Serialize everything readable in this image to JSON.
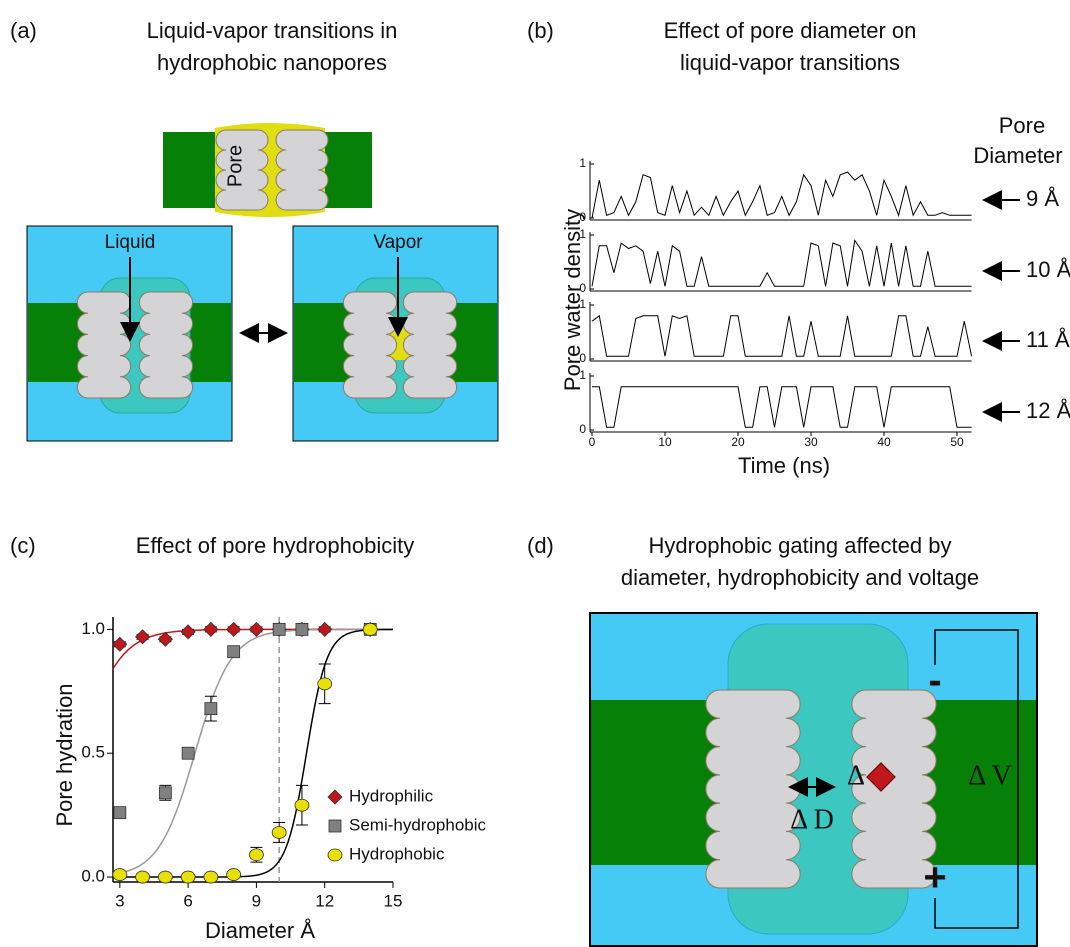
{
  "panel_a": {
    "label": "(a)",
    "title": [
      "Liquid-vapor transitions in",
      "hydrophobic nanopores"
    ],
    "pore": "Pore",
    "liquid": "Liquid",
    "vapor": "Vapor"
  },
  "chart_data": [
    {
      "type": "line",
      "panel_label": "(b)",
      "title": [
        "Effect of pore diameter on",
        "liquid-vapor transitions"
      ],
      "y_label": "Pore water density",
      "x_label": "Time (ns)",
      "legend_title": [
        "Pore",
        "Diameter"
      ],
      "x": [
        0,
        1,
        2,
        3,
        4,
        5,
        6,
        7,
        8,
        9,
        10,
        11,
        12,
        13,
        14,
        15,
        16,
        17,
        18,
        19,
        20,
        21,
        22,
        23,
        24,
        25,
        26,
        27,
        28,
        29,
        30,
        31,
        32,
        33,
        34,
        35,
        36,
        37,
        38,
        39,
        40,
        41,
        42,
        43,
        44,
        45,
        46,
        47,
        48,
        49,
        50,
        51,
        52
      ],
      "xlim": [
        0,
        52
      ],
      "xticks": [
        0,
        10,
        20,
        30,
        40,
        50
      ],
      "ylim": [
        0,
        1
      ],
      "yticks": [
        0,
        1
      ],
      "color": "#000000",
      "series": [
        {
          "name": "9 Å",
          "values": [
            0,
            0.7,
            0.05,
            0.1,
            0.4,
            0.05,
            0.3,
            0.8,
            0.75,
            0.1,
            0.05,
            0.6,
            0.1,
            0.5,
            0.05,
            0.2,
            0.05,
            0.4,
            0.05,
            0.3,
            0.5,
            0.05,
            0.3,
            0.6,
            0.05,
            0.1,
            0.4,
            0.05,
            0.3,
            0.8,
            0.6,
            0.05,
            0.7,
            0.4,
            0.8,
            0.85,
            0.7,
            0.8,
            0.5,
            0.05,
            0.7,
            0.4,
            0.05,
            0.6,
            0.05,
            0.3,
            0.05,
            0.05,
            0.1,
            0.05,
            0.05,
            0.05,
            0.05
          ]
        },
        {
          "name": "10 Å",
          "values": [
            0.05,
            0.8,
            0.8,
            0.3,
            0.85,
            0.75,
            0.8,
            0.7,
            0.1,
            0.7,
            0.05,
            0.8,
            0.7,
            0.05,
            0.05,
            0.6,
            0.05,
            0.05,
            0.05,
            0.05,
            0.05,
            0.05,
            0.05,
            0.05,
            0.3,
            0.05,
            0.05,
            0.05,
            0.05,
            0.05,
            0.85,
            0.8,
            0.05,
            0.85,
            0.8,
            0.05,
            0.9,
            0.7,
            0.05,
            0.8,
            0.05,
            0.85,
            0.05,
            0.8,
            0.05,
            0.05,
            0.7,
            0.05,
            0.05,
            0.05,
            0.05,
            0.05,
            0.05
          ]
        },
        {
          "name": "11 Å",
          "values": [
            0.7,
            0.8,
            0.05,
            0.05,
            0.05,
            0.05,
            0.75,
            0.8,
            0.8,
            0.8,
            0.05,
            0.8,
            0.75,
            0.8,
            0.05,
            0.05,
            0.05,
            0.05,
            0.05,
            0.8,
            0.8,
            0.05,
            0.05,
            0.05,
            0.05,
            0.05,
            0.05,
            0.8,
            0.05,
            0.05,
            0.7,
            0.05,
            0.05,
            0.05,
            0.05,
            0.8,
            0.05,
            0.05,
            0.05,
            0.05,
            0.05,
            0.05,
            0.8,
            0.8,
            0.05,
            0.05,
            0.6,
            0.05,
            0.05,
            0.05,
            0.05,
            0.7,
            0.05
          ]
        },
        {
          "name": "12 Å",
          "values": [
            0.8,
            0.8,
            0.05,
            0.05,
            0.8,
            0.8,
            0.8,
            0.8,
            0.8,
            0.8,
            0.8,
            0.8,
            0.8,
            0.8,
            0.8,
            0.8,
            0.8,
            0.8,
            0.8,
            0.8,
            0.8,
            0.05,
            0.05,
            0.8,
            0.8,
            0.05,
            0.8,
            0.8,
            0.8,
            0.05,
            0.8,
            0.8,
            0.8,
            0.8,
            0.05,
            0.05,
            0.8,
            0.8,
            0.8,
            0.8,
            0.05,
            0.8,
            0.8,
            0.8,
            0.8,
            0.8,
            0.8,
            0.8,
            0.8,
            0.8,
            0.05,
            0.05,
            0.05
          ]
        }
      ]
    },
    {
      "type": "scatter",
      "panel_label": "(c)",
      "title": "Effect of pore hydrophobicity",
      "x_label": "Diameter Å",
      "y_label": "Pore hydration",
      "xlim": [
        2.7,
        15
      ],
      "xticks": [
        3,
        6,
        9,
        12,
        15
      ],
      "ylim": [
        -0.02,
        1.05
      ],
      "yticks": [
        {
          "value": 0,
          "label": "0.0"
        },
        {
          "value": 0.5,
          "label": "0.5"
        },
        {
          "value": 1,
          "label": "1.0"
        }
      ],
      "vline": 10,
      "legend": "lower right",
      "series": [
        {
          "name": "Hydrophilic",
          "color": "#c0171c",
          "marker": "diamond",
          "x": [
            3,
            4,
            5,
            6,
            7,
            8,
            9,
            10,
            11,
            12,
            14
          ],
          "values": [
            0.94,
            0.97,
            0.96,
            0.99,
            1.0,
            1.0,
            1.0,
            1.0,
            1.0,
            1.0,
            1.0
          ],
          "errors": [
            0.01,
            0.01,
            0.01,
            0.01,
            0.01,
            0.01,
            0.01,
            0.01,
            0.01,
            0.01,
            0.01
          ],
          "fit": {
            "x0": 1.2,
            "k": 0.9,
            "color": "#c0171c"
          }
        },
        {
          "name": "Semi-hydrophobic",
          "color": "#808080",
          "marker": "square",
          "x": [
            3,
            5,
            6,
            7,
            8,
            10,
            11,
            14
          ],
          "values": [
            0.26,
            0.34,
            0.5,
            0.68,
            0.91,
            1.0,
            1.0,
            1.0
          ],
          "errors": [
            0.01,
            0.03,
            0.01,
            0.05,
            0.01,
            0.01,
            0.01,
            0.01
          ],
          "fit": {
            "x0": 6.3,
            "k": 0.8,
            "color": "#999999"
          }
        },
        {
          "name": "Hydrophobic",
          "color": "#e8e000",
          "marker": "ellipse",
          "x": [
            3,
            4,
            5,
            6,
            7,
            8,
            9,
            10,
            11,
            12,
            14
          ],
          "values": [
            0.01,
            0,
            0,
            0,
            0,
            0.01,
            0.09,
            0.18,
            0.29,
            0.78,
            1.0
          ],
          "errors": [
            0,
            0,
            0,
            0,
            0,
            0,
            0.03,
            0.04,
            0.08,
            0.08,
            0.01
          ],
          "fit": {
            "x0": 11.2,
            "k": 0.45,
            "color": "#000000"
          }
        }
      ]
    }
  ],
  "panel_d": {
    "label": "(d)",
    "title": [
      "Hydrophobic gating affected by",
      "diameter, hydrophobicity and voltage"
    ],
    "delta": "Δ",
    "delta_d": "Δ D",
    "delta_v": "Δ V",
    "minus": "-",
    "plus": "+"
  }
}
